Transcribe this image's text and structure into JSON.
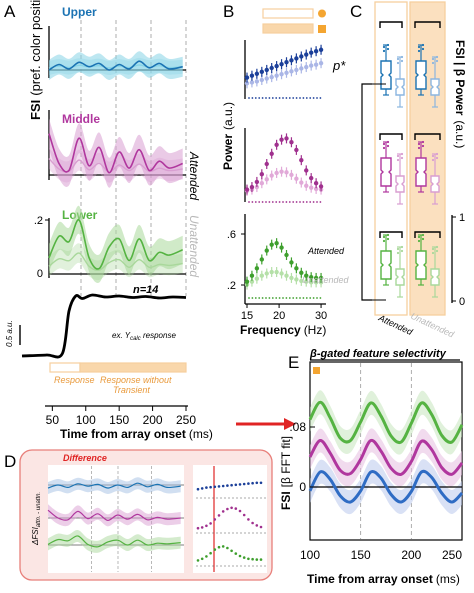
{
  "panels": {
    "A": {
      "letter": "A",
      "ylabel_main": "FSI",
      "ylabel_paren": "(pref. color positive)",
      "layers": [
        "Upper",
        "Middle",
        "Lower"
      ],
      "layer_colors": [
        "#1b73b3",
        "#b0379e",
        "#55b342"
      ],
      "band_colors": [
        "#86d3e6",
        "#d99ed1",
        "#a9d89b"
      ],
      "yticks": [
        "0",
        ".2",
        "0"
      ],
      "n_label": "n=14",
      "attended_label": "Attended",
      "unattended_label": "Unattended",
      "scale_label": "0.5 a.u.",
      "response_label": "ex. Y",
      "response_sub": "calc",
      "response_suffix": " response",
      "epoch1": "Response",
      "epoch2_line1": "Response without",
      "epoch2_line2": "Transient",
      "xticks": [
        "50",
        "100",
        "150",
        "200",
        "250"
      ],
      "xlabel": "Time from array onset",
      "xunit": "(ms)"
    },
    "B": {
      "letter": "B",
      "ylabel": "Power",
      "yunit": "(a.u.)",
      "yticks": [
        ".6",
        ".2"
      ],
      "xticks": [
        "15",
        "20",
        "30"
      ],
      "xlabel": "Frequency",
      "xunit": "(Hz)",
      "attended_label": "Attended",
      "unattended_label": "Unattended"
    },
    "C": {
      "letter": "C",
      "ylabel": "FSI | β Power",
      "yunit": "(a.u.)",
      "yticks": [
        "1",
        "0"
      ],
      "p_label": "p*",
      "attended_label": "Attended",
      "unattended_label": "Unattended"
    },
    "D": {
      "letter": "D",
      "title": "Difference",
      "ylabel": "ΔFSI",
      "ylabel_sub": "attn. - unattn."
    },
    "E": {
      "letter": "E",
      "title": "β-gated feature selectivity",
      "ylabel": "FSI",
      "ylabel_paren": "[β FFT fit]",
      "yticks": [
        ".08",
        "0"
      ],
      "xticks": [
        "100",
        "150",
        "200",
        "250"
      ],
      "xlabel": "Time from array onset",
      "xunit": "(ms)"
    }
  },
  "chart_data": [
    {
      "type": "line",
      "panel": "A",
      "x": [
        45,
        60,
        75,
        90,
        105,
        120,
        135,
        150,
        165,
        180,
        195,
        210,
        225,
        245
      ],
      "xlim": [
        45,
        250
      ],
      "series": [
        {
          "name": "Upper",
          "values": [
            0.0,
            0.05,
            0.01,
            0.07,
            0.03,
            0.06,
            0.0,
            0.05,
            0.01,
            0.08,
            0.02,
            0.06,
            0.01,
            0.03
          ]
        },
        {
          "name": "Middle",
          "values": [
            0.18,
            0.05,
            0.02,
            0.16,
            0.04,
            0.12,
            0.01,
            0.1,
            0.03,
            0.11,
            0.02,
            0.06,
            0.03,
            0.05
          ]
        },
        {
          "name": "Lower",
          "values": [
            0.06,
            0.14,
            0.12,
            0.2,
            0.06,
            0.02,
            0.1,
            0.13,
            0.05,
            0.13,
            0.05,
            0.08,
            0.07,
            0.09
          ]
        }
      ]
    },
    {
      "type": "line",
      "panel": "A-response",
      "x": [
        45,
        55,
        65,
        75,
        85,
        95,
        110,
        130,
        150,
        170,
        190,
        210,
        230,
        250
      ],
      "values": [
        0.0,
        0.02,
        0.05,
        0.9,
        1.2,
        1.15,
        1.22,
        1.18,
        1.2,
        1.17,
        1.19,
        1.16,
        1.18,
        1.17
      ]
    },
    {
      "type": "scatter",
      "panel": "B",
      "xlabel": "Frequency",
      "x": [
        15,
        16,
        17,
        18,
        19,
        20,
        21,
        22,
        23,
        24,
        25,
        26,
        27,
        28,
        29,
        30
      ],
      "xlim": [
        15,
        31
      ],
      "series": [
        {
          "name": "Upper attended",
          "values": [
            0.3,
            0.34,
            0.38,
            0.42,
            0.46,
            0.5,
            0.54,
            0.58,
            0.62,
            0.66,
            0.7,
            0.74,
            0.78,
            0.82,
            0.85,
            0.88
          ]
        },
        {
          "name": "Upper unattended",
          "values": [
            0.18,
            0.2,
            0.22,
            0.25,
            0.28,
            0.31,
            0.34,
            0.37,
            0.4,
            0.43,
            0.46,
            0.49,
            0.52,
            0.55,
            0.57,
            0.6
          ]
        },
        {
          "name": "Middle attended",
          "values": [
            0.1,
            0.14,
            0.22,
            0.34,
            0.5,
            0.66,
            0.8,
            0.88,
            0.9,
            0.84,
            0.72,
            0.56,
            0.4,
            0.28,
            0.2,
            0.15
          ]
        },
        {
          "name": "Middle unattended",
          "values": [
            0.08,
            0.1,
            0.14,
            0.2,
            0.26,
            0.32,
            0.36,
            0.38,
            0.37,
            0.33,
            0.27,
            0.21,
            0.16,
            0.13,
            0.11,
            0.1
          ]
        },
        {
          "name": "Lower attended",
          "values": [
            0.14,
            0.22,
            0.32,
            0.44,
            0.56,
            0.64,
            0.66,
            0.6,
            0.5,
            0.4,
            0.32,
            0.26,
            0.22,
            0.2,
            0.19,
            0.19
          ]
        },
        {
          "name": "Lower unattended",
          "values": [
            0.1,
            0.14,
            0.18,
            0.22,
            0.25,
            0.27,
            0.27,
            0.25,
            0.22,
            0.19,
            0.17,
            0.15,
            0.14,
            0.13,
            0.13,
            0.13
          ]
        }
      ]
    },
    {
      "type": "box",
      "panel": "C",
      "groups": [
        "Attended",
        "Unattended"
      ],
      "series": [
        {
          "name": "Upper",
          "medians": [
            0.77,
            0.74
          ]
        },
        {
          "name": "Middle",
          "medians": [
            0.5,
            0.46
          ]
        },
        {
          "name": "Lower",
          "medians": [
            0.2,
            0.17
          ]
        }
      ]
    },
    {
      "type": "line",
      "panel": "E",
      "x": [
        100,
        110,
        120,
        130,
        140,
        150,
        160,
        170,
        180,
        190,
        200,
        210,
        220,
        230,
        240,
        250
      ],
      "xlim": [
        100,
        250
      ],
      "ylim": [
        -0.03,
        0.14
      ],
      "series": [
        {
          "name": "Lower",
          "values": [
            0.09,
            0.113,
            0.092,
            0.065,
            0.062,
            0.087,
            0.112,
            0.095,
            0.068,
            0.06,
            0.085,
            0.112,
            0.097,
            0.069,
            0.06,
            0.083
          ]
        },
        {
          "name": "Middle",
          "values": [
            0.04,
            0.062,
            0.045,
            0.022,
            0.018,
            0.037,
            0.062,
            0.048,
            0.025,
            0.017,
            0.034,
            0.061,
            0.05,
            0.026,
            0.017,
            0.032
          ]
        },
        {
          "name": "Upper",
          "values": [
            -0.005,
            0.02,
            0.01,
            -0.012,
            -0.02,
            -0.005,
            0.02,
            0.012,
            -0.01,
            -0.02,
            -0.006,
            0.02,
            0.013,
            -0.008,
            -0.02,
            -0.008
          ]
        }
      ]
    }
  ]
}
